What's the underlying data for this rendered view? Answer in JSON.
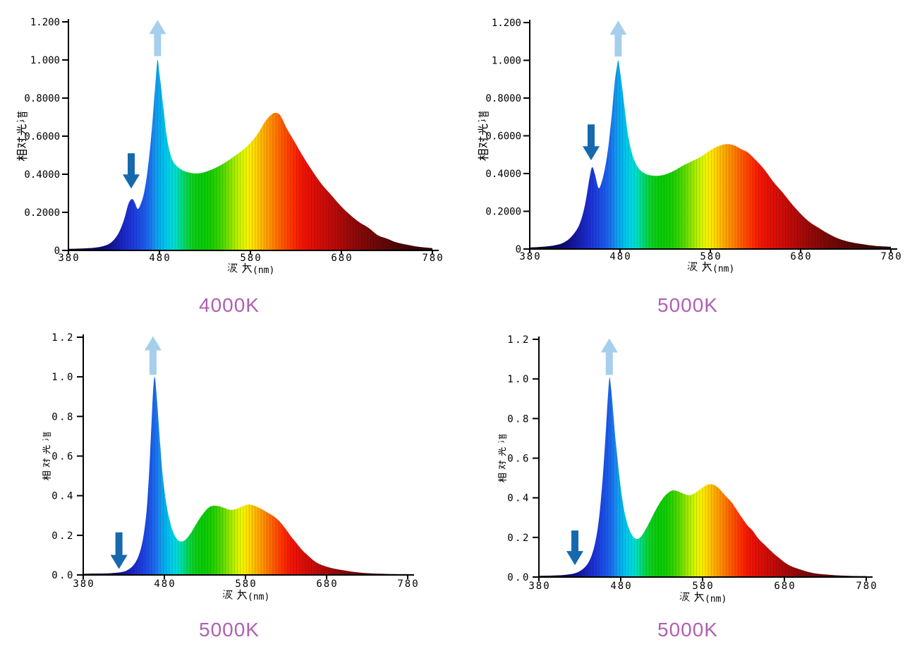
{
  "page": {
    "background": "#ffffff"
  },
  "colors": {
    "title": "#b060b0",
    "axis": "#000000",
    "arrow_up": "#a5cfec",
    "arrow_down": "#1769ad",
    "spectrum_stops": [
      [
        380,
        "#050415"
      ],
      [
        400,
        "#070640"
      ],
      [
        412,
        "#0a0a62"
      ],
      [
        422,
        "#0e0f85"
      ],
      [
        432,
        "#141ba6"
      ],
      [
        440,
        "#1a26c2"
      ],
      [
        448,
        "#1e33d6"
      ],
      [
        456,
        "#1c46e2"
      ],
      [
        464,
        "#1b5cea"
      ],
      [
        470,
        "#1b74f0"
      ],
      [
        476,
        "#149aee"
      ],
      [
        481,
        "#02b2f0"
      ],
      [
        486,
        "#00c6ee"
      ],
      [
        492,
        "#00d6e6"
      ],
      [
        498,
        "#00dfc8"
      ],
      [
        503,
        "#00dc96"
      ],
      [
        508,
        "#04d75e"
      ],
      [
        513,
        "#0cd232"
      ],
      [
        519,
        "#0ecd16"
      ],
      [
        527,
        "#08cc08"
      ],
      [
        536,
        "#14ce02"
      ],
      [
        544,
        "#32d400"
      ],
      [
        552,
        "#5cdc00"
      ],
      [
        559,
        "#8ee600"
      ],
      [
        566,
        "#bcf000"
      ],
      [
        572,
        "#e0f600"
      ],
      [
        577,
        "#f6f400"
      ],
      [
        582,
        "#ffe400"
      ],
      [
        587,
        "#ffd000"
      ],
      [
        593,
        "#ffb400"
      ],
      [
        599,
        "#ff9c00"
      ],
      [
        605,
        "#ff8400"
      ],
      [
        611,
        "#ff6a00"
      ],
      [
        617,
        "#ff5200"
      ],
      [
        623,
        "#ff3c00"
      ],
      [
        629,
        "#fc2800"
      ],
      [
        636,
        "#f41606"
      ],
      [
        645,
        "#e61007"
      ],
      [
        655,
        "#d60d07"
      ],
      [
        667,
        "#c20b08"
      ],
      [
        680,
        "#aa0a08"
      ],
      [
        695,
        "#8e0908"
      ],
      [
        711,
        "#760908"
      ],
      [
        729,
        "#5e0807"
      ],
      [
        749,
        "#460706"
      ],
      [
        769,
        "#340505"
      ],
      [
        780,
        "#2c0504"
      ]
    ]
  },
  "chart_data": [
    {
      "type": "area",
      "title": "4000K",
      "xlabel": "波 长(nm)",
      "ylabel": "相对光谱",
      "xlim": [
        380,
        780
      ],
      "ylim": [
        0,
        1.2
      ],
      "x_ticks": [
        380,
        480,
        580,
        680,
        780
      ],
      "y_ticks": [
        {
          "v": 0,
          "label": "0"
        },
        {
          "v": 0.2,
          "label": "0.2000"
        },
        {
          "v": 0.4,
          "label": "0.4000"
        },
        {
          "v": 0.6,
          "label": "0.6000"
        },
        {
          "v": 0.8,
          "label": "0.8000"
        },
        {
          "v": 1.0,
          "label": "1.000"
        },
        {
          "v": 1.2,
          "label": "1.200"
        }
      ],
      "points": [
        [
          380,
          0.008
        ],
        [
          395,
          0.01
        ],
        [
          408,
          0.014
        ],
        [
          418,
          0.022
        ],
        [
          427,
          0.042
        ],
        [
          435,
          0.09
        ],
        [
          441,
          0.16
        ],
        [
          446,
          0.245
        ],
        [
          450,
          0.27
        ],
        [
          453,
          0.25
        ],
        [
          456,
          0.218
        ],
        [
          459,
          0.238
        ],
        [
          463,
          0.3
        ],
        [
          467,
          0.42
        ],
        [
          471,
          0.6
        ],
        [
          474,
          0.78
        ],
        [
          476,
          0.9
        ],
        [
          478,
          1.0
        ],
        [
          480,
          0.93
        ],
        [
          482,
          0.85
        ],
        [
          485,
          0.72
        ],
        [
          488,
          0.6
        ],
        [
          491,
          0.525
        ],
        [
          494,
          0.478
        ],
        [
          498,
          0.448
        ],
        [
          503,
          0.428
        ],
        [
          509,
          0.414
        ],
        [
          516,
          0.406
        ],
        [
          524,
          0.405
        ],
        [
          532,
          0.415
        ],
        [
          541,
          0.432
        ],
        [
          551,
          0.458
        ],
        [
          561,
          0.49
        ],
        [
          571,
          0.525
        ],
        [
          580,
          0.565
        ],
        [
          588,
          0.612
        ],
        [
          596,
          0.675
        ],
        [
          602,
          0.708
        ],
        [
          607,
          0.722
        ],
        [
          613,
          0.708
        ],
        [
          620,
          0.64
        ],
        [
          628,
          0.575
        ],
        [
          637,
          0.5
        ],
        [
          647,
          0.425
        ],
        [
          658,
          0.35
        ],
        [
          669,
          0.29
        ],
        [
          680,
          0.23
        ],
        [
          690,
          0.185
        ],
        [
          700,
          0.147
        ],
        [
          710,
          0.118
        ],
        [
          720,
          0.08
        ],
        [
          730,
          0.062
        ],
        [
          740,
          0.043
        ],
        [
          752,
          0.03
        ],
        [
          765,
          0.019
        ],
        [
          780,
          0.012
        ]
      ],
      "arrow_up": {
        "x": 478,
        "tip": 1.21,
        "tail": 1.02
      },
      "arrow_down": {
        "x": 449,
        "tip": 0.325,
        "tail": 0.51
      }
    },
    {
      "type": "area",
      "title": "5000K",
      "xlabel": "波 长(nm)",
      "ylabel": "相对光谱",
      "xlim": [
        380,
        780
      ],
      "ylim": [
        0,
        1.2
      ],
      "x_ticks": [
        380,
        480,
        580,
        680,
        780
      ],
      "y_ticks": [
        {
          "v": 0,
          "label": "0"
        },
        {
          "v": 0.2,
          "label": "0.2000"
        },
        {
          "v": 0.4,
          "label": "0.4000"
        },
        {
          "v": 0.6,
          "label": "0.6000"
        },
        {
          "v": 0.8,
          "label": "0.8000"
        },
        {
          "v": 1.0,
          "label": "1.000"
        },
        {
          "v": 1.2,
          "label": "1.200"
        }
      ],
      "points": [
        [
          380,
          0.008
        ],
        [
          395,
          0.012
        ],
        [
          408,
          0.02
        ],
        [
          418,
          0.035
        ],
        [
          427,
          0.07
        ],
        [
          435,
          0.13
        ],
        [
          441,
          0.23
        ],
        [
          446,
          0.37
        ],
        [
          449,
          0.433
        ],
        [
          452,
          0.4
        ],
        [
          456,
          0.325
        ],
        [
          459,
          0.345
        ],
        [
          463,
          0.42
        ],
        [
          467,
          0.54
        ],
        [
          471,
          0.72
        ],
        [
          474,
          0.88
        ],
        [
          476,
          0.95
        ],
        [
          478,
          1.0
        ],
        [
          480,
          0.94
        ],
        [
          482,
          0.87
        ],
        [
          485,
          0.75
        ],
        [
          488,
          0.63
        ],
        [
          492,
          0.53
        ],
        [
          496,
          0.468
        ],
        [
          501,
          0.425
        ],
        [
          507,
          0.402
        ],
        [
          514,
          0.39
        ],
        [
          522,
          0.388
        ],
        [
          530,
          0.395
        ],
        [
          540,
          0.415
        ],
        [
          550,
          0.443
        ],
        [
          560,
          0.466
        ],
        [
          570,
          0.49
        ],
        [
          579,
          0.52
        ],
        [
          588,
          0.543
        ],
        [
          598,
          0.556
        ],
        [
          606,
          0.55
        ],
        [
          614,
          0.53
        ],
        [
          622,
          0.51
        ],
        [
          631,
          0.468
        ],
        [
          640,
          0.42
        ],
        [
          650,
          0.355
        ],
        [
          660,
          0.3
        ],
        [
          670,
          0.24
        ],
        [
          680,
          0.187
        ],
        [
          690,
          0.143
        ],
        [
          700,
          0.112
        ],
        [
          710,
          0.083
        ],
        [
          722,
          0.055
        ],
        [
          734,
          0.038
        ],
        [
          748,
          0.026
        ],
        [
          762,
          0.017
        ],
        [
          780,
          0.012
        ]
      ],
      "arrow_up": {
        "x": 478,
        "tip": 1.21,
        "tail": 1.02
      },
      "arrow_down": {
        "x": 448,
        "tip": 0.47,
        "tail": 0.66
      }
    },
    {
      "type": "area",
      "title": "5000K",
      "xlabel": "波 长(nm)",
      "ylabel": "相对光谱",
      "xlim": [
        380,
        780
      ],
      "ylim": [
        0,
        1.2
      ],
      "x_ticks": [
        380,
        480,
        580,
        680,
        780
      ],
      "y_ticks": [
        {
          "v": 0,
          "label": "0.0"
        },
        {
          "v": 0.2,
          "label": "0.2"
        },
        {
          "v": 0.4,
          "label": "0.4"
        },
        {
          "v": 0.6,
          "label": "0.6"
        },
        {
          "v": 0.8,
          "label": "0.8"
        },
        {
          "v": 1.0,
          "label": "1.0"
        },
        {
          "v": 1.2,
          "label": "1.2"
        }
      ],
      "points": [
        [
          380,
          0.006
        ],
        [
          400,
          0.007
        ],
        [
          415,
          0.009
        ],
        [
          428,
          0.015
        ],
        [
          436,
          0.028
        ],
        [
          443,
          0.055
        ],
        [
          449,
          0.105
        ],
        [
          454,
          0.19
        ],
        [
          458,
          0.32
        ],
        [
          461,
          0.5
        ],
        [
          464,
          0.75
        ],
        [
          466,
          0.92
        ],
        [
          468,
          1.0
        ],
        [
          470,
          0.93
        ],
        [
          472,
          0.82
        ],
        [
          475,
          0.65
        ],
        [
          478,
          0.5
        ],
        [
          482,
          0.37
        ],
        [
          486,
          0.285
        ],
        [
          490,
          0.225
        ],
        [
          494,
          0.19
        ],
        [
          498,
          0.172
        ],
        [
          503,
          0.17
        ],
        [
          508,
          0.186
        ],
        [
          514,
          0.22
        ],
        [
          520,
          0.262
        ],
        [
          527,
          0.305
        ],
        [
          534,
          0.338
        ],
        [
          540,
          0.349
        ],
        [
          547,
          0.347
        ],
        [
          554,
          0.338
        ],
        [
          561,
          0.329
        ],
        [
          568,
          0.332
        ],
        [
          576,
          0.346
        ],
        [
          583,
          0.355
        ],
        [
          588,
          0.353
        ],
        [
          594,
          0.344
        ],
        [
          601,
          0.33
        ],
        [
          608,
          0.313
        ],
        [
          615,
          0.295
        ],
        [
          622,
          0.27
        ],
        [
          629,
          0.235
        ],
        [
          636,
          0.195
        ],
        [
          643,
          0.16
        ],
        [
          650,
          0.125
        ],
        [
          657,
          0.098
        ],
        [
          664,
          0.073
        ],
        [
          671,
          0.055
        ],
        [
          680,
          0.042
        ],
        [
          690,
          0.031
        ],
        [
          700,
          0.024
        ],
        [
          714,
          0.015
        ],
        [
          730,
          0.009
        ],
        [
          755,
          0.005
        ],
        [
          780,
          0.004
        ]
      ],
      "arrow_up": {
        "x": 466,
        "tip": 1.205,
        "tail": 1.01
      },
      "arrow_down": {
        "x": 424,
        "tip": 0.03,
        "tail": 0.215
      }
    },
    {
      "type": "area",
      "title": "5000K",
      "xlabel": "波 长(nm)",
      "ylabel": "相对光谱",
      "xlim": [
        380,
        780
      ],
      "ylim": [
        0,
        1.2
      ],
      "x_ticks": [
        380,
        480,
        580,
        680,
        780
      ],
      "y_ticks": [
        {
          "v": 0,
          "label": "0.0"
        },
        {
          "v": 0.2,
          "label": "0.2"
        },
        {
          "v": 0.4,
          "label": "0.4"
        },
        {
          "v": 0.6,
          "label": "0.6"
        },
        {
          "v": 0.8,
          "label": "0.8"
        },
        {
          "v": 1.0,
          "label": "1.0"
        },
        {
          "v": 1.2,
          "label": "1.2"
        }
      ],
      "points": [
        [
          380,
          0.006
        ],
        [
          400,
          0.008
        ],
        [
          414,
          0.012
        ],
        [
          426,
          0.022
        ],
        [
          435,
          0.045
        ],
        [
          442,
          0.085
        ],
        [
          448,
          0.16
        ],
        [
          453,
          0.28
        ],
        [
          457,
          0.45
        ],
        [
          460,
          0.62
        ],
        [
          463,
          0.82
        ],
        [
          466,
          1.0
        ],
        [
          468,
          0.96
        ],
        [
          470,
          0.87
        ],
        [
          473,
          0.72
        ],
        [
          476,
          0.6
        ],
        [
          480,
          0.45
        ],
        [
          484,
          0.34
        ],
        [
          488,
          0.27
        ],
        [
          492,
          0.225
        ],
        [
          496,
          0.2
        ],
        [
          500,
          0.192
        ],
        [
          505,
          0.205
        ],
        [
          511,
          0.245
        ],
        [
          518,
          0.3
        ],
        [
          525,
          0.355
        ],
        [
          532,
          0.4
        ],
        [
          538,
          0.425
        ],
        [
          543,
          0.437
        ],
        [
          549,
          0.434
        ],
        [
          556,
          0.422
        ],
        [
          563,
          0.413
        ],
        [
          570,
          0.422
        ],
        [
          577,
          0.443
        ],
        [
          583,
          0.46
        ],
        [
          588,
          0.468
        ],
        [
          594,
          0.465
        ],
        [
          600,
          0.447
        ],
        [
          608,
          0.41
        ],
        [
          615,
          0.38
        ],
        [
          620,
          0.35
        ],
        [
          628,
          0.3
        ],
        [
          635,
          0.26
        ],
        [
          641,
          0.235
        ],
        [
          648,
          0.195
        ],
        [
          654,
          0.17
        ],
        [
          660,
          0.146
        ],
        [
          668,
          0.115
        ],
        [
          674,
          0.095
        ],
        [
          680,
          0.075
        ],
        [
          688,
          0.055
        ],
        [
          698,
          0.04
        ],
        [
          710,
          0.025
        ],
        [
          722,
          0.016
        ],
        [
          740,
          0.01
        ],
        [
          760,
          0.006
        ],
        [
          780,
          0.005
        ]
      ],
      "arrow_up": {
        "x": 466,
        "tip": 1.205,
        "tail": 1.02
      },
      "arrow_down": {
        "x": 424,
        "tip": 0.06,
        "tail": 0.235
      }
    }
  ]
}
